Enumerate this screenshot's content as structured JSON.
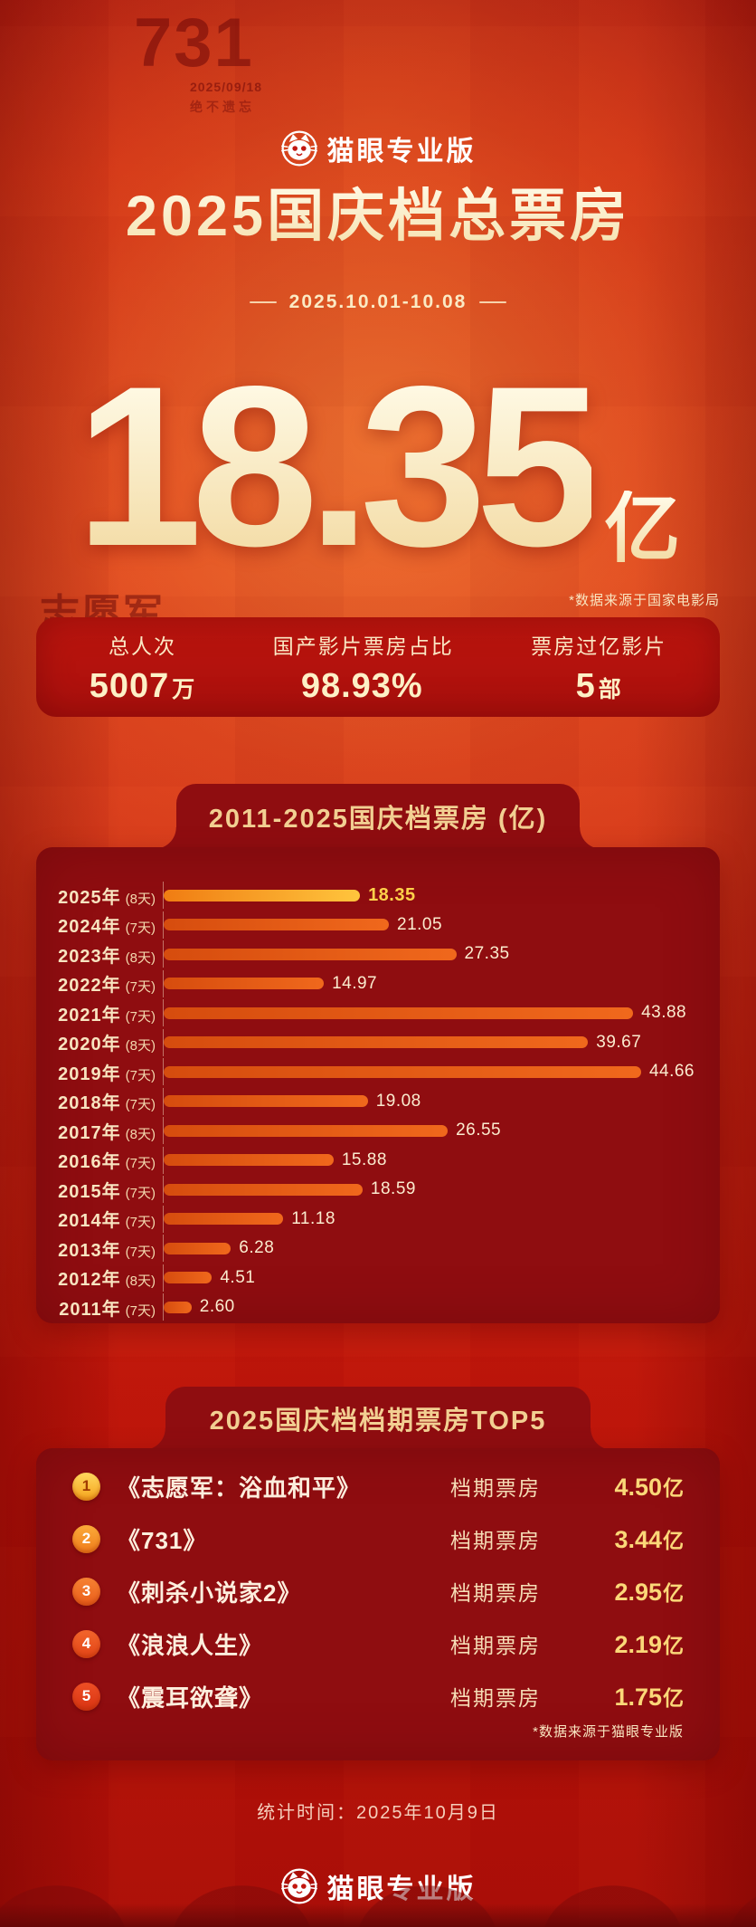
{
  "colors": {
    "background_red": "#c51d10",
    "panel_maroon": "#8f0d10",
    "cream_text": "#fdf2d2",
    "accent_gold": "#ffd24a",
    "bar_orange": "#f0681c"
  },
  "background": {
    "fragments": [
      "731",
      "2025/09/18",
      "绝不遗忘",
      "志愿军"
    ]
  },
  "header": {
    "brand": "猫眼专业版",
    "title": "2025国庆档总票房",
    "date_range": "2025.10.01-10.08"
  },
  "hero": {
    "value": "18.35",
    "unit": "亿",
    "source_note": "*数据来源于国家电影局"
  },
  "stats": [
    {
      "label": "总人次",
      "value": "5007",
      "suffix": "万"
    },
    {
      "label": "国产影片票房占比",
      "value": "98.93%",
      "suffix": ""
    },
    {
      "label": "票房过亿影片",
      "value": "5",
      "suffix": "部"
    }
  ],
  "chart_data": {
    "type": "bar",
    "orientation": "horizontal",
    "title": "2011-2025国庆档票房 (亿)",
    "categories": [
      "2025年",
      "2024年",
      "2023年",
      "2022年",
      "2021年",
      "2020年",
      "2019年",
      "2018年",
      "2017年",
      "2016年",
      "2015年",
      "2014年",
      "2013年",
      "2012年",
      "2011年"
    ],
    "day_counts": [
      "(8天)",
      "(7天)",
      "(8天)",
      "(7天)",
      "(7天)",
      "(8天)",
      "(7天)",
      "(7天)",
      "(8天)",
      "(7天)",
      "(7天)",
      "(7天)",
      "(7天)",
      "(8天)",
      "(7天)"
    ],
    "values": [
      18.35,
      21.05,
      27.35,
      14.97,
      43.88,
      39.67,
      44.66,
      19.08,
      26.55,
      15.88,
      18.59,
      11.18,
      6.28,
      4.51,
      2.6
    ],
    "xlim": [
      0,
      46
    ],
    "grid": false,
    "highlight_index": 0,
    "value_labels_shown": true
  },
  "top5": {
    "title": "2025国庆档档期票房TOP5",
    "column_label": "档期票房",
    "unit": "亿",
    "rows": [
      {
        "rank": "1",
        "movie": "《志愿军：浴血和平》",
        "value": "4.50"
      },
      {
        "rank": "2",
        "movie": "《731》",
        "value": "3.44"
      },
      {
        "rank": "3",
        "movie": "《刺杀小说家2》",
        "value": "2.95"
      },
      {
        "rank": "4",
        "movie": "《浪浪人生》",
        "value": "2.19"
      },
      {
        "rank": "5",
        "movie": "《震耳欲聋》",
        "value": "1.75"
      }
    ],
    "source_note": "*数据来源于猫眼专业版"
  },
  "footer": {
    "stat_time": "统计时间：2025年10月9日",
    "brand": "猫眼专业版"
  }
}
